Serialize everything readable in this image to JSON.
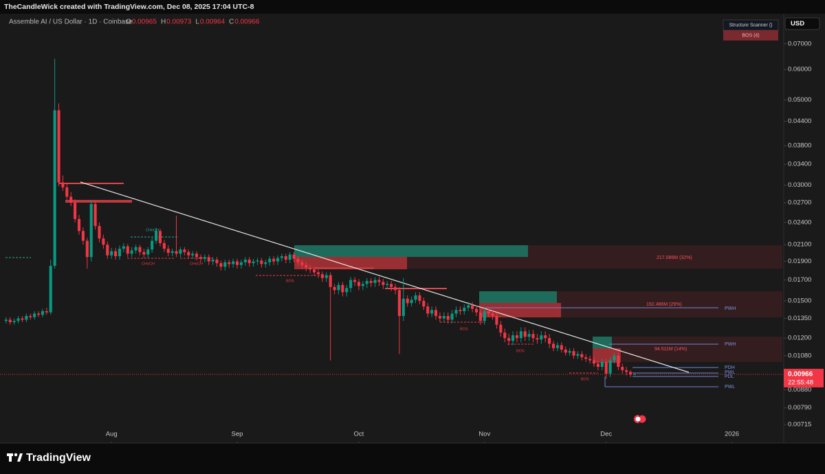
{
  "header": {
    "attribution": "TheCandleWick created with TradingView.com, Dec 08, 2025 17:04 UTC-8",
    "brand": "TradingView"
  },
  "ui": {
    "currency": "USD",
    "scanner_title": "Structure Scanner ()",
    "scanner_item": "BOS (4)",
    "countdown": "22:55:48"
  },
  "chart_data": {
    "type": "candlestick",
    "title": "Assemble AI / US Dollar · 1D · Coinbase",
    "ohlc_names": [
      "O",
      "H",
      "L",
      "C"
    ],
    "up_color": "#089981",
    "down_color": "#f23645",
    "log_scale": true,
    "grid": false,
    "x": [
      5,
      6,
      7,
      8,
      9,
      10,
      11,
      12,
      13,
      14,
      15,
      16,
      17,
      18,
      19,
      20,
      21,
      22,
      23,
      24,
      25,
      26,
      27,
      28,
      29,
      30,
      31,
      32,
      33,
      34,
      35,
      36,
      37,
      38,
      39,
      40,
      41,
      42,
      43,
      44,
      45,
      46,
      47,
      48,
      49,
      50,
      51,
      52,
      53,
      54,
      55,
      56,
      57,
      58,
      59,
      60,
      61,
      62,
      63,
      64,
      65,
      66,
      67,
      68,
      69,
      70,
      71,
      72,
      73,
      74,
      75,
      76,
      77,
      78,
      79,
      80,
      81,
      82,
      83,
      84,
      85,
      86,
      87,
      88,
      89,
      90,
      91,
      92,
      93,
      94,
      95,
      96,
      97,
      98,
      99,
      100,
      101,
      102,
      103,
      104,
      105,
      106,
      107,
      108,
      109,
      110,
      111,
      112,
      113,
      114,
      115,
      116,
      117,
      118,
      119,
      120,
      121,
      122,
      123,
      124,
      125,
      126,
      127,
      128,
      129,
      130,
      131,
      132,
      133,
      134,
      135,
      136,
      137,
      138,
      139,
      140,
      141,
      142,
      143,
      144,
      145,
      146,
      147,
      148,
      149,
      150,
      151,
      152,
      153,
      154,
      155,
      156,
      157,
      158,
      159,
      160
    ],
    "open": [
      0.0133,
      0.0134,
      0.0132,
      0.0133,
      0.0135,
      0.0134,
      0.0137,
      0.0136,
      0.0139,
      0.0138,
      0.0141,
      0.014,
      0.0185,
      0.047,
      0.0305,
      0.0296,
      0.028,
      0.027,
      0.0245,
      0.0228,
      0.0215,
      0.0195,
      0.0268,
      0.0235,
      0.0218,
      0.021,
      0.0197,
      0.0202,
      0.0196,
      0.0205,
      0.0208,
      0.0199,
      0.0203,
      0.0207,
      0.0201,
      0.0198,
      0.0204,
      0.0215,
      0.0228,
      0.0212,
      0.0205,
      0.02,
      0.0202,
      0.0199,
      0.0204,
      0.0201,
      0.0197,
      0.0199,
      0.0195,
      0.0193,
      0.0195,
      0.019,
      0.0192,
      0.0188,
      0.0184,
      0.0189,
      0.0187,
      0.019,
      0.0186,
      0.0189,
      0.0192,
      0.0188,
      0.019,
      0.0191,
      0.0187,
      0.0189,
      0.0193,
      0.019,
      0.0194,
      0.0196,
      0.0192,
      0.0198,
      0.0193,
      0.0189,
      0.0186,
      0.0183,
      0.0181,
      0.0178,
      0.0176,
      0.0172,
      0.0175,
      0.0163,
      0.016,
      0.0165,
      0.0158,
      0.0162,
      0.017,
      0.0168,
      0.0164,
      0.0166,
      0.0169,
      0.0167,
      0.017,
      0.0168,
      0.0165,
      0.0166,
      0.0163,
      0.016,
      0.0137,
      0.0152,
      0.0148,
      0.0151,
      0.0155,
      0.015,
      0.0145,
      0.0139,
      0.0142,
      0.0137,
      0.0135,
      0.0137,
      0.0134,
      0.0139,
      0.0142,
      0.0141,
      0.0144,
      0.0146,
      0.0143,
      0.014,
      0.0133,
      0.0141,
      0.0139,
      0.0137,
      0.013,
      0.0124,
      0.012,
      0.0118,
      0.0122,
      0.012,
      0.0125,
      0.0121,
      0.0123,
      0.012,
      0.0119,
      0.0122,
      0.012,
      0.0116,
      0.0113,
      0.0115,
      0.0112,
      0.011,
      0.0111,
      0.0108,
      0.0109,
      0.0107,
      0.0106,
      0.0105,
      0.0103,
      0.0101,
      0.0104,
      0.0097,
      0.0105,
      0.0108,
      0.0101,
      0.0099,
      0.0098,
      0.00965
    ],
    "high": [
      0.0136,
      0.0136,
      0.0135,
      0.0137,
      0.0137,
      0.0139,
      0.0139,
      0.0141,
      0.0141,
      0.0143,
      0.0144,
      0.0192,
      0.064,
      0.049,
      0.0318,
      0.0303,
      0.0288,
      0.0276,
      0.0251,
      0.0233,
      0.0219,
      0.0275,
      0.0272,
      0.024,
      0.0223,
      0.0214,
      0.0206,
      0.0206,
      0.0209,
      0.0212,
      0.0211,
      0.0207,
      0.021,
      0.021,
      0.0205,
      0.0207,
      0.0219,
      0.0232,
      0.0231,
      0.0216,
      0.0209,
      0.0205,
      0.025,
      0.0207,
      0.0207,
      0.0204,
      0.0202,
      0.0202,
      0.0198,
      0.0198,
      0.0198,
      0.0195,
      0.0195,
      0.0191,
      0.0192,
      0.0192,
      0.0193,
      0.0193,
      0.0192,
      0.0195,
      0.0195,
      0.0193,
      0.0194,
      0.0194,
      0.0192,
      0.0196,
      0.0196,
      0.0197,
      0.0199,
      0.0199,
      0.0201,
      0.0201,
      0.0196,
      0.0192,
      0.0189,
      0.0186,
      0.0184,
      0.0181,
      0.0179,
      0.0178,
      0.0178,
      0.0166,
      0.0168,
      0.0168,
      0.0165,
      0.0173,
      0.0173,
      0.0171,
      0.0169,
      0.0172,
      0.0172,
      0.0173,
      0.0173,
      0.0171,
      0.0169,
      0.0169,
      0.0166,
      0.0163,
      0.0172,
      0.0155,
      0.0154,
      0.0158,
      0.0158,
      0.0153,
      0.0148,
      0.0145,
      0.0145,
      0.014,
      0.014,
      0.014,
      0.0142,
      0.0145,
      0.0145,
      0.0147,
      0.0149,
      0.0149,
      0.0146,
      0.0143,
      0.0144,
      0.0144,
      0.0142,
      0.014,
      0.0133,
      0.0127,
      0.0123,
      0.0125,
      0.0125,
      0.0128,
      0.0128,
      0.0126,
      0.0126,
      0.0123,
      0.0125,
      0.0125,
      0.0123,
      0.0118,
      0.0117,
      0.0117,
      0.0114,
      0.0113,
      0.0113,
      0.0111,
      0.0111,
      0.0109,
      0.0108,
      0.0107,
      0.0105,
      0.0106,
      0.0106,
      0.0107,
      0.011,
      0.011,
      0.0103,
      0.0101,
      0.0099,
      0.00973
    ],
    "low": [
      0.0131,
      0.013,
      0.013,
      0.0131,
      0.0132,
      0.0132,
      0.0134,
      0.0134,
      0.0136,
      0.0136,
      0.0138,
      0.0138,
      0.0182,
      0.0298,
      0.029,
      0.0275,
      0.0265,
      0.024,
      0.0223,
      0.021,
      0.0182,
      0.019,
      0.023,
      0.0213,
      0.0205,
      0.0193,
      0.0193,
      0.0192,
      0.0192,
      0.0201,
      0.0195,
      0.0195,
      0.0199,
      0.0197,
      0.0194,
      0.0194,
      0.02,
      0.0211,
      0.0208,
      0.0201,
      0.0196,
      0.0196,
      0.0195,
      0.0195,
      0.0197,
      0.0193,
      0.0193,
      0.0191,
      0.0189,
      0.0189,
      0.0186,
      0.0186,
      0.0184,
      0.018,
      0.018,
      0.0183,
      0.0183,
      0.0182,
      0.0182,
      0.0185,
      0.0184,
      0.0184,
      0.0186,
      0.0183,
      0.0183,
      0.0185,
      0.0186,
      0.0186,
      0.019,
      0.0188,
      0.0188,
      0.0189,
      0.0185,
      0.0182,
      0.0179,
      0.0177,
      0.0174,
      0.0172,
      0.0168,
      0.0168,
      0.0105,
      0.0156,
      0.0156,
      0.0154,
      0.0154,
      0.0158,
      0.0164,
      0.016,
      0.016,
      0.0162,
      0.0163,
      0.0163,
      0.0164,
      0.0161,
      0.0161,
      0.0159,
      0.0156,
      0.0109,
      0.0133,
      0.0145,
      0.0145,
      0.0148,
      0.0147,
      0.0142,
      0.0136,
      0.0136,
      0.0134,
      0.0132,
      0.0132,
      0.0131,
      0.0131,
      0.0136,
      0.0138,
      0.0138,
      0.0141,
      0.014,
      0.0137,
      0.013,
      0.013,
      0.0136,
      0.0134,
      0.0127,
      0.0121,
      0.0117,
      0.0115,
      0.0115,
      0.0117,
      0.0117,
      0.0118,
      0.0118,
      0.0117,
      0.0116,
      0.0116,
      0.0117,
      0.0113,
      0.0111,
      0.0111,
      0.011,
      0.0108,
      0.0108,
      0.0106,
      0.0106,
      0.0105,
      0.0104,
      0.0103,
      0.0101,
      0.0099,
      0.0099,
      0.0094,
      0.0095,
      0.0103,
      0.0099,
      0.0097,
      0.0096,
      0.0095,
      0.00964
    ],
    "close": [
      0.0134,
      0.0132,
      0.0133,
      0.0135,
      0.0134,
      0.0137,
      0.0136,
      0.0139,
      0.0138,
      0.0141,
      0.014,
      0.0185,
      0.047,
      0.0305,
      0.0296,
      0.028,
      0.027,
      0.0245,
      0.0228,
      0.0215,
      0.0195,
      0.0268,
      0.0235,
      0.0218,
      0.021,
      0.0197,
      0.0202,
      0.0196,
      0.0205,
      0.0208,
      0.0199,
      0.0203,
      0.0207,
      0.0201,
      0.0198,
      0.0204,
      0.0215,
      0.0228,
      0.0212,
      0.0205,
      0.02,
      0.0202,
      0.0199,
      0.0204,
      0.0201,
      0.0197,
      0.0199,
      0.0195,
      0.0193,
      0.0195,
      0.019,
      0.0192,
      0.0188,
      0.0184,
      0.0189,
      0.0187,
      0.019,
      0.0186,
      0.0189,
      0.0192,
      0.0188,
      0.019,
      0.0191,
      0.0187,
      0.0189,
      0.0193,
      0.019,
      0.0194,
      0.0196,
      0.0192,
      0.0198,
      0.0193,
      0.0189,
      0.0186,
      0.0183,
      0.0181,
      0.0178,
      0.0176,
      0.0172,
      0.0175,
      0.0163,
      0.016,
      0.0165,
      0.0158,
      0.0162,
      0.017,
      0.0168,
      0.0164,
      0.0166,
      0.0169,
      0.0167,
      0.017,
      0.0168,
      0.0165,
      0.0166,
      0.0163,
      0.016,
      0.0137,
      0.0152,
      0.0148,
      0.0151,
      0.0155,
      0.015,
      0.0145,
      0.0139,
      0.0142,
      0.0137,
      0.0135,
      0.0137,
      0.0134,
      0.0139,
      0.0142,
      0.0141,
      0.0144,
      0.0146,
      0.0143,
      0.014,
      0.0133,
      0.0141,
      0.0139,
      0.0137,
      0.013,
      0.0124,
      0.012,
      0.0118,
      0.0122,
      0.012,
      0.0125,
      0.0121,
      0.0123,
      0.012,
      0.0119,
      0.0122,
      0.012,
      0.0116,
      0.0113,
      0.0115,
      0.0112,
      0.011,
      0.0111,
      0.0108,
      0.0109,
      0.0107,
      0.0106,
      0.0105,
      0.0103,
      0.0101,
      0.0104,
      0.0097,
      0.0105,
      0.0108,
      0.0101,
      0.0099,
      0.0098,
      0.00965,
      0.00966
    ],
    "xlim": [
      3.5,
      196.8
    ],
    "xticks": [
      {
        "value": 31,
        "label": "Aug"
      },
      {
        "value": 62,
        "label": "Sep"
      },
      {
        "value": 92,
        "label": "Oct"
      },
      {
        "value": 123,
        "label": "Nov"
      },
      {
        "value": 153,
        "label": "Dec"
      },
      {
        "value": 184,
        "label": "2026"
      }
    ],
    "ylim": [
      0.00653,
      0.0821
    ],
    "yticks": [
      {
        "value": 0.07,
        "label": "0.07000"
      },
      {
        "value": 0.06,
        "label": "0.06000"
      },
      {
        "value": 0.05,
        "label": "0.05000"
      },
      {
        "value": 0.044,
        "label": "0.04400"
      },
      {
        "value": 0.038,
        "label": "0.03800"
      },
      {
        "value": 0.034,
        "label": "0.03400"
      },
      {
        "value": 0.03,
        "label": "0.03000"
      },
      {
        "value": 0.027,
        "label": "0.02700"
      },
      {
        "value": 0.024,
        "label": "0.02400"
      },
      {
        "value": 0.021,
        "label": "0.02100"
      },
      {
        "value": 0.019,
        "label": "0.01900"
      },
      {
        "value": 0.017,
        "label": "0.01700"
      },
      {
        "value": 0.015,
        "label": "0.01500"
      },
      {
        "value": 0.0135,
        "label": "0.01350"
      },
      {
        "value": 0.012,
        "label": "0.01200"
      },
      {
        "value": 0.0108,
        "label": "0.01080"
      },
      {
        "value": 0.0088,
        "label": "0.00880"
      },
      {
        "value": 0.0079,
        "label": "0.00790"
      },
      0.00715
    ],
    "annotations": [
      "217.086M (32%)",
      "192.486M (29%)",
      "94.511M (14%)",
      "PWH",
      "PWH",
      "PDH",
      "PWL",
      "PDL",
      "PWL",
      "BOS",
      "BOS",
      "BOS",
      "BOS",
      "CHoCH",
      "CHoCH",
      "CHoCH"
    ]
  }
}
